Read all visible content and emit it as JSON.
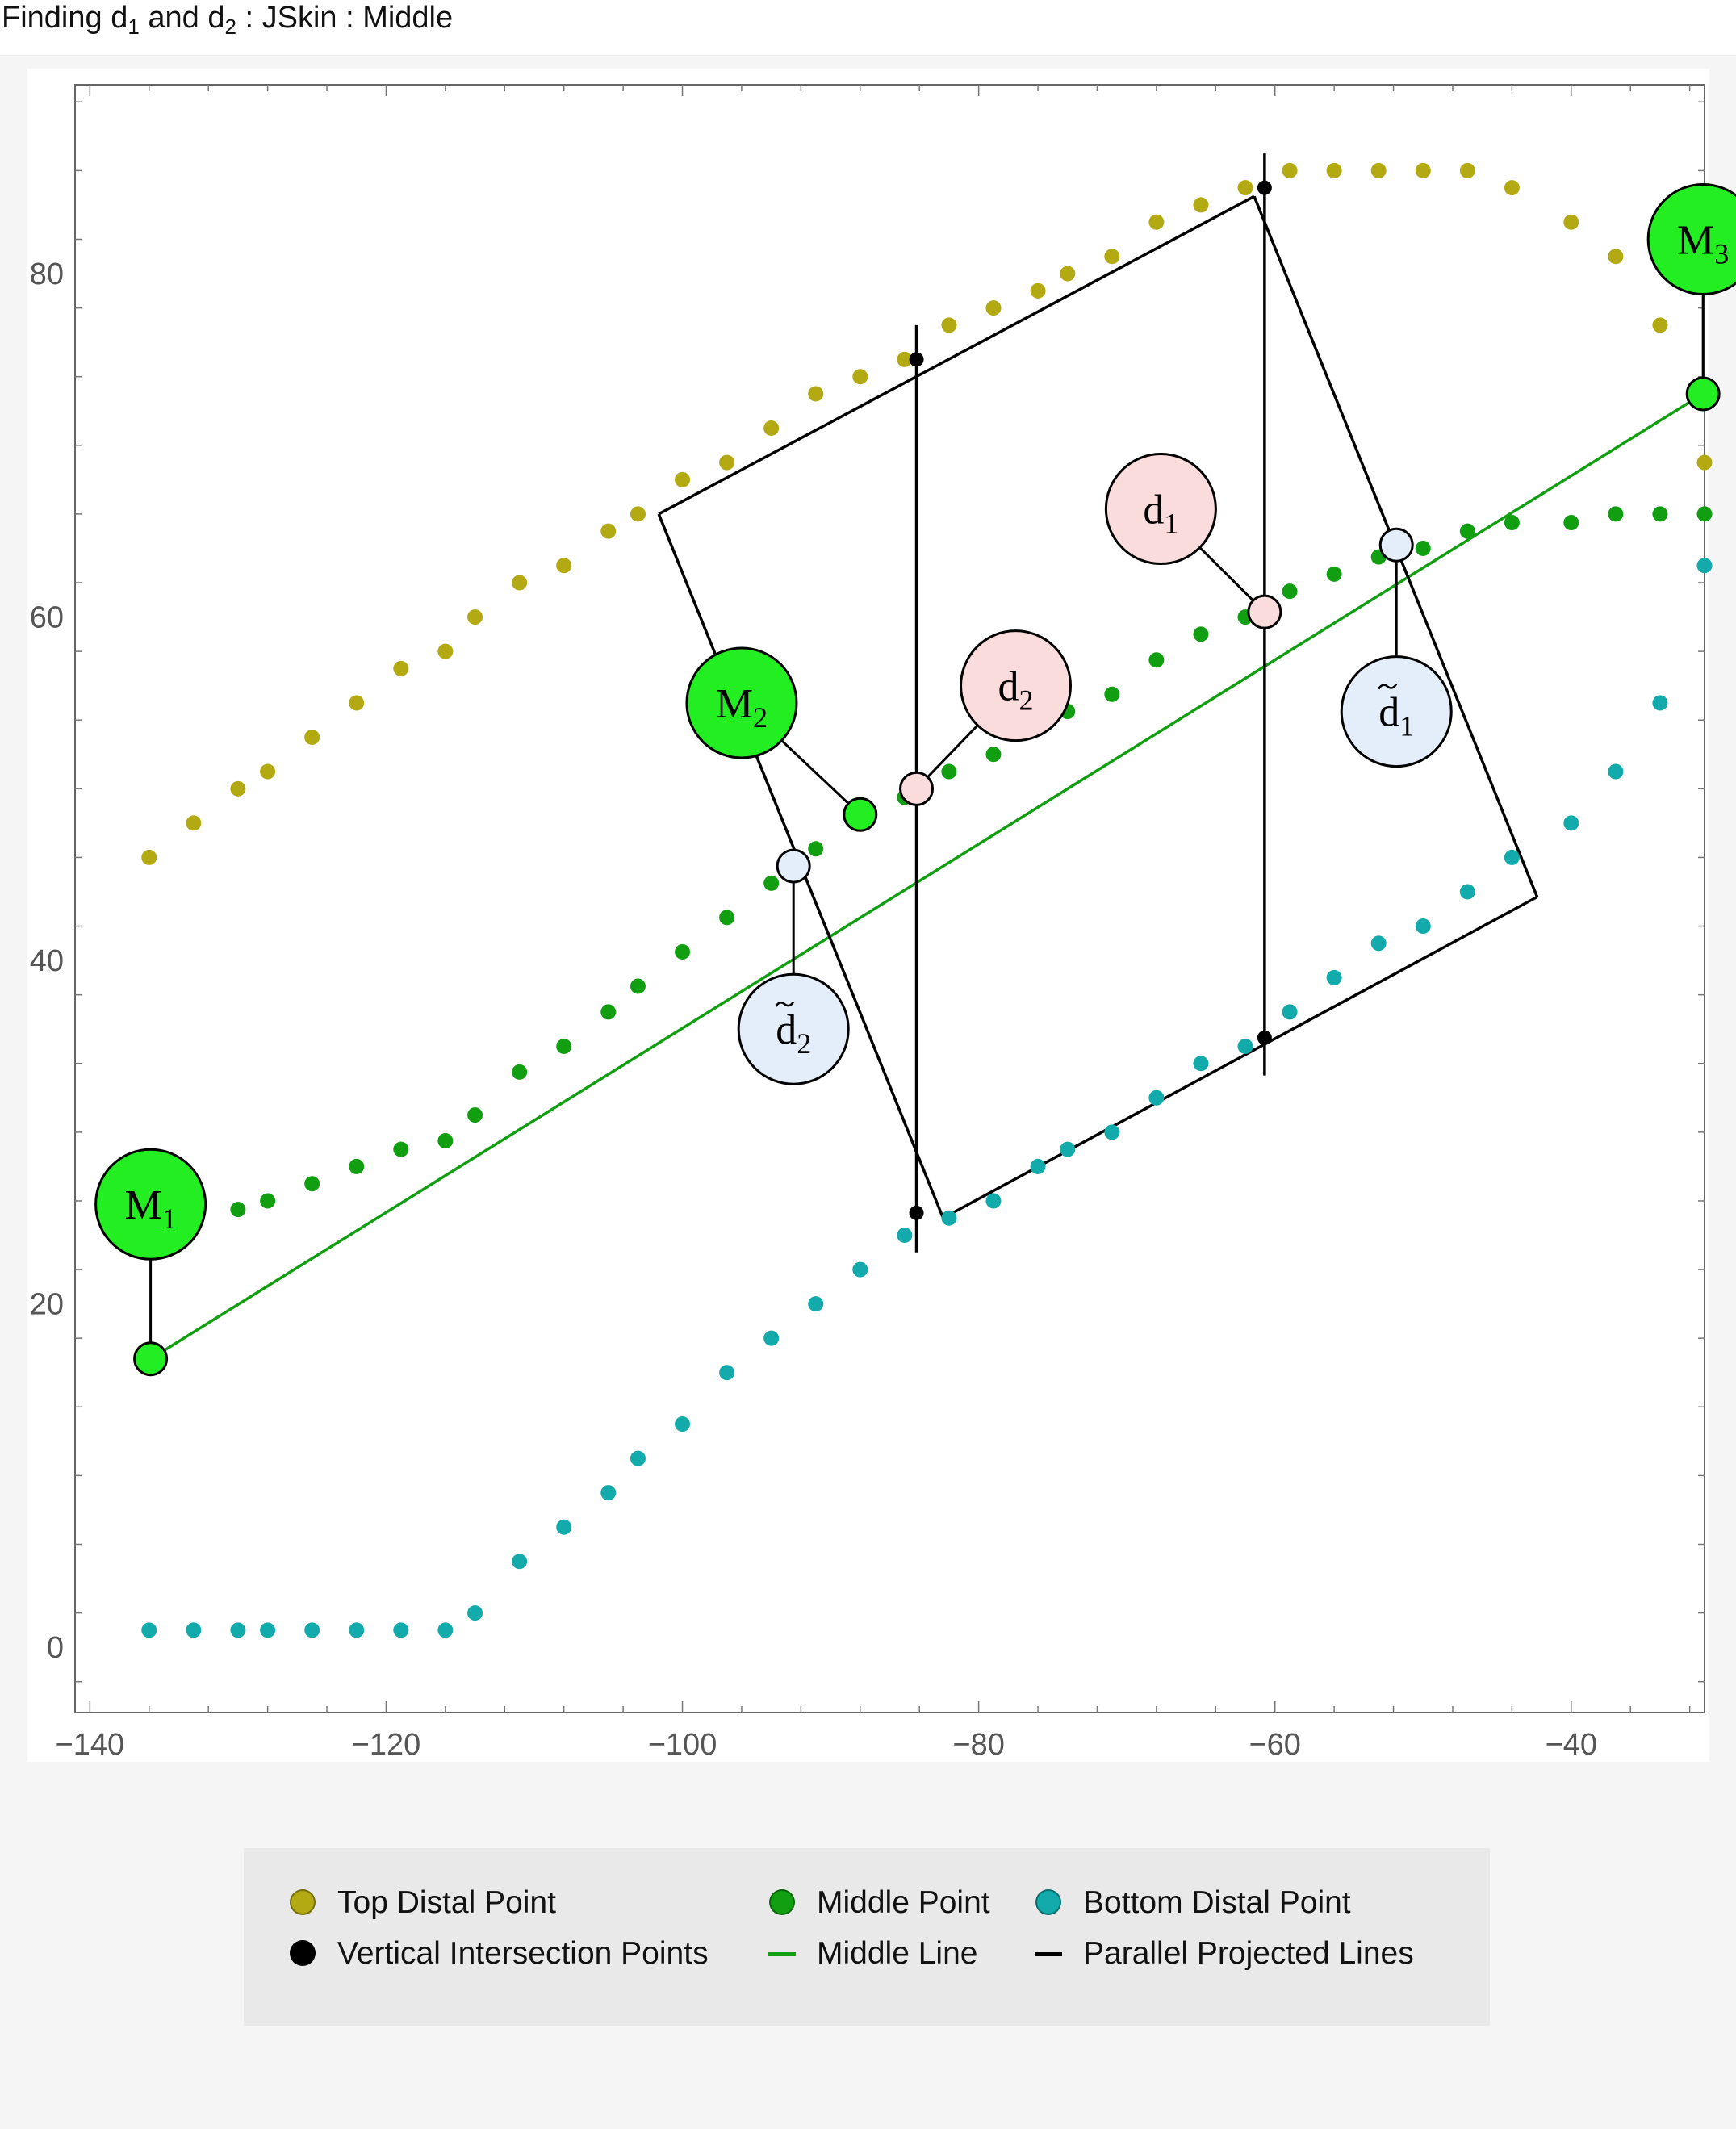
{
  "page": {
    "title_parts": {
      "a": "Finding d",
      "s1": "1",
      "b": " and d",
      "s2": "2",
      "c": " : JSkin : Middle"
    }
  },
  "colors": {
    "top": "#b3a912",
    "middle": "#119f11",
    "bottom": "#12aaaa",
    "black": "#000000",
    "bright_green": "#22ee22",
    "pink": "#fbdcdc",
    "light_blue": "#e3eefa"
  },
  "chart_data": {
    "type": "scatter",
    "title": "",
    "xlabel": "",
    "ylabel": "",
    "xlim": [
      -141,
      -31
    ],
    "ylim": [
      -3.8,
      91
    ],
    "grid": false,
    "x_ticks": [
      -140,
      -120,
      -100,
      -80,
      -60,
      -40
    ],
    "y_ticks": [
      0,
      20,
      40,
      60,
      80
    ],
    "x_tick_labels": [
      "−140",
      "−120",
      "−100",
      "−80",
      "−60",
      "−40"
    ],
    "y_tick_labels": [
      "0",
      "20",
      "40",
      "60",
      "80"
    ],
    "series": [
      {
        "name": "Top Distal Point",
        "color_key": "top",
        "points": [
          [
            -136,
            46
          ],
          [
            -133,
            48
          ],
          [
            -130,
            50
          ],
          [
            -128,
            51
          ],
          [
            -125,
            53
          ],
          [
            -122,
            55
          ],
          [
            -119,
            57
          ],
          [
            -116,
            58
          ],
          [
            -114,
            60
          ],
          [
            -111,
            62
          ],
          [
            -108,
            63
          ],
          [
            -105,
            65
          ],
          [
            -103,
            66
          ],
          [
            -100,
            68
          ],
          [
            -97,
            69
          ],
          [
            -94,
            71
          ],
          [
            -91,
            73
          ],
          [
            -88,
            74
          ],
          [
            -85,
            75
          ],
          [
            -82,
            77
          ],
          [
            -79,
            78
          ],
          [
            -76,
            79
          ],
          [
            -74,
            80
          ],
          [
            -71,
            81
          ],
          [
            -68,
            83
          ],
          [
            -65,
            84
          ],
          [
            -62,
            85
          ],
          [
            -59,
            86
          ],
          [
            -56,
            86
          ],
          [
            -53,
            86
          ],
          [
            -50,
            86
          ],
          [
            -47,
            86
          ],
          [
            -44,
            85
          ],
          [
            -40,
            83
          ],
          [
            -37,
            81
          ],
          [
            -34,
            77
          ],
          [
            -31,
            69
          ]
        ]
      },
      {
        "name": "Middle Point",
        "color_key": "middle",
        "points": [
          [
            -130,
            25.5
          ],
          [
            -128,
            26
          ],
          [
            -125,
            27
          ],
          [
            -122,
            28
          ],
          [
            -119,
            29
          ],
          [
            -116,
            29.5
          ],
          [
            -114,
            31
          ],
          [
            -111,
            33.5
          ],
          [
            -108,
            35
          ],
          [
            -105,
            37
          ],
          [
            -103,
            38.5
          ],
          [
            -100,
            40.5
          ],
          [
            -97,
            42.5
          ],
          [
            -94,
            44.5
          ],
          [
            -91,
            46.5
          ],
          [
            -88,
            48.5
          ],
          [
            -85,
            49.5
          ],
          [
            -82,
            51
          ],
          [
            -79,
            52
          ],
          [
            -76,
            53.5
          ],
          [
            -74,
            54.5
          ],
          [
            -71,
            55.5
          ],
          [
            -68,
            57.5
          ],
          [
            -65,
            59
          ],
          [
            -62,
            60
          ],
          [
            -59,
            61.5
          ],
          [
            -56,
            62.5
          ],
          [
            -53,
            63.5
          ],
          [
            -50,
            64
          ],
          [
            -47,
            65
          ],
          [
            -44,
            65.5
          ],
          [
            -40,
            65.5
          ],
          [
            -37,
            66
          ],
          [
            -34,
            66
          ],
          [
            -31,
            66
          ]
        ]
      },
      {
        "name": "Bottom Distal Point",
        "color_key": "bottom",
        "points": [
          [
            -136,
            1
          ],
          [
            -133,
            1
          ],
          [
            -130,
            1
          ],
          [
            -128,
            1
          ],
          [
            -125,
            1
          ],
          [
            -122,
            1
          ],
          [
            -119,
            1
          ],
          [
            -116,
            1
          ],
          [
            -114,
            2
          ],
          [
            -111,
            5
          ],
          [
            -108,
            7
          ],
          [
            -105,
            9
          ],
          [
            -103,
            11
          ],
          [
            -100,
            13
          ],
          [
            -97,
            16
          ],
          [
            -94,
            18
          ],
          [
            -91,
            20
          ],
          [
            -88,
            22
          ],
          [
            -85,
            24
          ],
          [
            -82,
            25
          ],
          [
            -79,
            26
          ],
          [
            -76,
            28
          ],
          [
            -74,
            29
          ],
          [
            -71,
            30
          ],
          [
            -68,
            32
          ],
          [
            -65,
            34
          ],
          [
            -62,
            35
          ],
          [
            -59,
            37
          ],
          [
            -56,
            39
          ],
          [
            -53,
            41
          ],
          [
            -50,
            42
          ],
          [
            -47,
            44
          ],
          [
            -44,
            46
          ],
          [
            -40,
            48
          ],
          [
            -37,
            51
          ],
          [
            -34,
            55
          ],
          [
            -31,
            63
          ]
        ]
      },
      {
        "name": "Vertical Intersection Points",
        "color_key": "black",
        "points": [
          [
            -84.2,
            75
          ],
          [
            -84.2,
            25.3
          ],
          [
            -60.7,
            85
          ],
          [
            -60.7,
            35.5
          ]
        ]
      }
    ],
    "middle_line": {
      "name": "Middle Line",
      "from": [
        -135.9,
        16.8
      ],
      "to": [
        -31.1,
        73
      ]
    },
    "parallel_projected_lines": {
      "name": "Parallel Projected Lines",
      "polygon": [
        [
          -101.6,
          66
        ],
        [
          -61.4,
          84.5
        ],
        [
          -42.3,
          43.7
        ],
        [
          -82.4,
          25
        ]
      ],
      "segments": [
        [
          [
            -101.6,
            66
          ],
          [
            -82.4,
            25
          ]
        ],
        [
          [
            -82.4,
            25
          ],
          [
            -42.3,
            43.7
          ]
        ],
        [
          [
            -42.3,
            43.7
          ],
          [
            -61.4,
            84.5
          ]
        ],
        [
          [
            -61.4,
            84.5
          ],
          [
            -101.6,
            66
          ]
        ]
      ]
    },
    "vertical_lines": [
      {
        "x": -84.2,
        "y1": 23,
        "y2": 77
      },
      {
        "x": -60.7,
        "y1": 33.3,
        "y2": 87
      }
    ],
    "key_points": [
      {
        "x": -135.9,
        "y": 16.8,
        "fill_key": "bright_green"
      },
      {
        "x": -88,
        "y": 48.5,
        "fill_key": "bright_green"
      },
      {
        "x": -31.1,
        "y": 73,
        "fill_key": "bright_green"
      },
      {
        "x": -84.2,
        "y": 50,
        "fill_key": "pink"
      },
      {
        "x": -60.7,
        "y": 60.3,
        "fill_key": "pink"
      },
      {
        "x": -92.5,
        "y": 45.5,
        "fill_key": "light_blue"
      },
      {
        "x": -51.8,
        "y": 64.2,
        "fill_key": "light_blue"
      }
    ],
    "annotations": [
      {
        "base": "M",
        "sub": "1",
        "tilde": false,
        "x": -135.9,
        "y": 25.8,
        "anchor": [
          -135.9,
          16.8
        ],
        "fill_key": "bright_green"
      },
      {
        "base": "M",
        "sub": "2",
        "tilde": false,
        "x": -96,
        "y": 55,
        "anchor": [
          -88,
          48.5
        ],
        "fill_key": "bright_green"
      },
      {
        "base": "M",
        "sub": "3",
        "tilde": false,
        "x": -31.1,
        "y": 82,
        "anchor": [
          -31.1,
          73
        ],
        "fill_key": "bright_green"
      },
      {
        "base": "d",
        "sub": "1",
        "tilde": false,
        "x": -67.7,
        "y": 66.3,
        "anchor": [
          -60.7,
          60.3
        ],
        "fill_key": "pink"
      },
      {
        "base": "d",
        "sub": "2",
        "tilde": false,
        "x": -77.5,
        "y": 56,
        "anchor": [
          -84.2,
          50
        ],
        "fill_key": "pink"
      },
      {
        "base": "d",
        "sub": "1",
        "tilde": true,
        "x": -51.8,
        "y": 54.5,
        "anchor": [
          -51.8,
          64.2
        ],
        "fill_key": "light_blue"
      },
      {
        "base": "d",
        "sub": "2",
        "tilde": true,
        "x": -92.5,
        "y": 36,
        "anchor": [
          -92.5,
          45.5
        ],
        "fill_key": "light_blue"
      }
    ],
    "legend": {
      "placement": "bottom",
      "items": [
        {
          "label": "Top Distal Point",
          "kind": "dot",
          "color_key": "top"
        },
        {
          "label": "Middle Point",
          "kind": "dot",
          "color_key": "middle"
        },
        {
          "label": "Bottom Distal Point",
          "kind": "dot",
          "color_key": "bottom"
        },
        {
          "label": "Vertical Intersection Points",
          "kind": "dot",
          "color_key": "black"
        },
        {
          "label": "Middle Line",
          "kind": "line",
          "color_key": "middle"
        },
        {
          "label": "Parallel Projected Lines",
          "kind": "line",
          "color_key": "black"
        }
      ]
    }
  }
}
